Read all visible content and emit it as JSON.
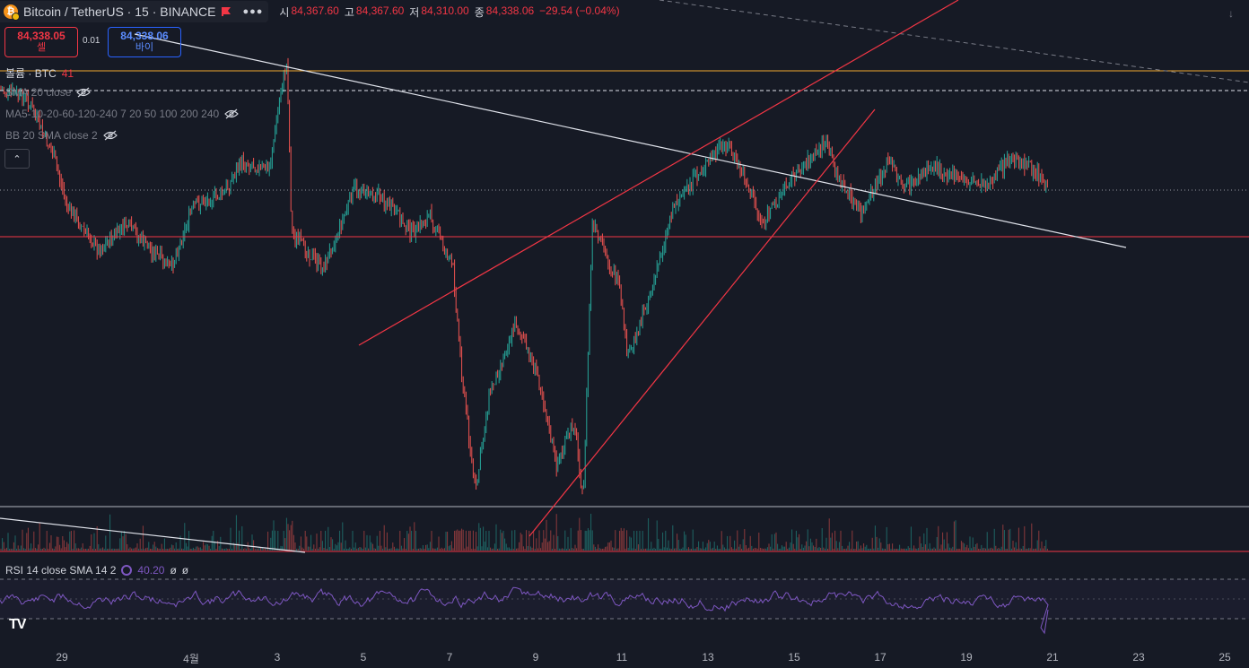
{
  "symbol": {
    "name": "Bitcoin / TetherUS",
    "interval": "15",
    "exchange": "BINANCE",
    "title_text": "Bitcoin / TetherUS · 15 · BINANCE",
    "icon": "bitcoin-icon",
    "more_icon": "ellipsis-icon"
  },
  "ohlc": {
    "open_label": "시",
    "open": "84,367.60",
    "high_label": "고",
    "high": "84,367.60",
    "low_label": "저",
    "low": "84,310.00",
    "close_label": "종",
    "close": "84,338.06",
    "change": "−29.54 (−0.04%)"
  },
  "trade": {
    "sell_price": "84,338.05",
    "sell_label": "셀",
    "spread": "0.01",
    "buy_price": "84,338.06",
    "buy_label": "바이"
  },
  "indicators": {
    "volume": "볼륨 · BTC",
    "volume_value": "41",
    "sma": "SMA 20 close",
    "ma": "MA5-10-20-60-120-240 7 20 50 100 200 240",
    "bb": "BB 20 SMA close 2"
  },
  "rsi": {
    "label": "RSI 14 close SMA 14 2",
    "value": "40.20",
    "extra1": "ø",
    "extra2": "ø"
  },
  "x_axis": [
    "29",
    "4월",
    "3",
    "5",
    "7",
    "9",
    "11",
    "13",
    "15",
    "17",
    "19",
    "21",
    "23",
    "25"
  ],
  "colors": {
    "background": "#161a25",
    "up": "#26a69a",
    "down": "#ef5350",
    "rsi": "#7e57c2",
    "trendline": "#e0e3eb",
    "channel": "#f23645",
    "highline": "#f0a830"
  }
}
